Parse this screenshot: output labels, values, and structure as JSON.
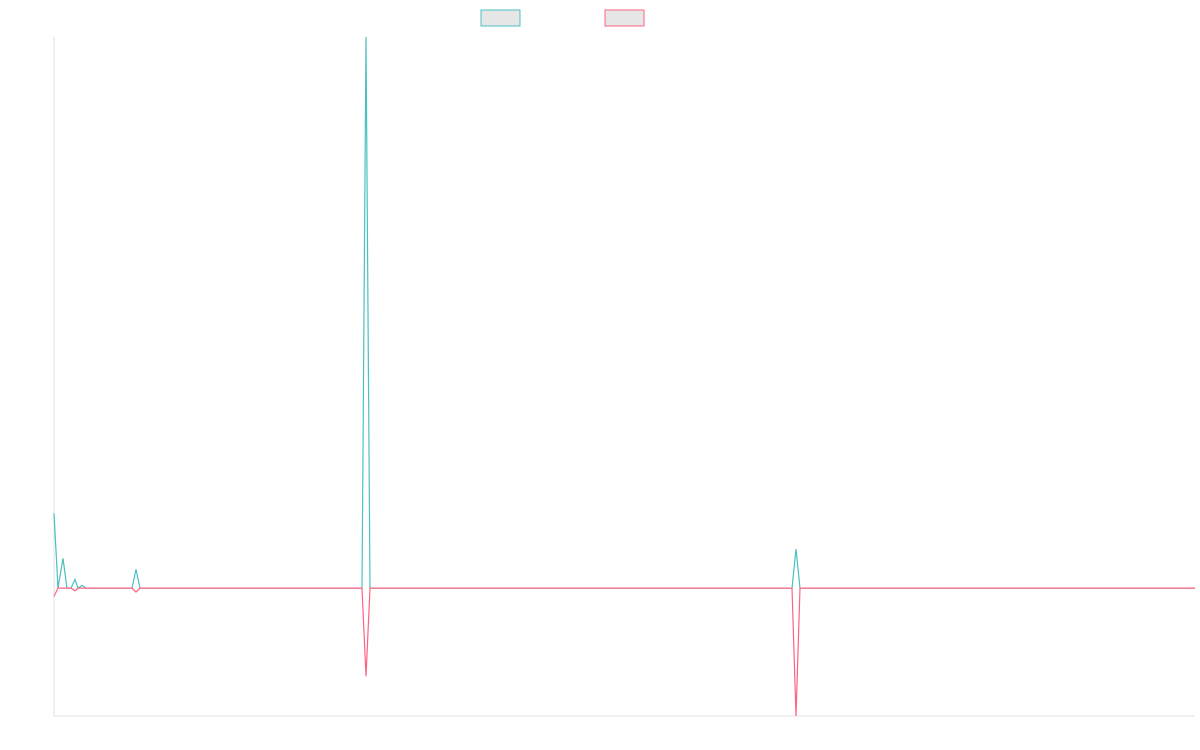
{
  "chart_data": {
    "type": "line",
    "x": [
      0,
      4,
      9,
      13,
      17,
      21,
      24,
      28,
      32,
      78,
      82,
      86,
      308,
      312,
      316,
      738,
      742,
      746,
      1141
    ],
    "xlim": [
      0,
      1141
    ],
    "ylim": [
      -23.2,
      100
    ],
    "series": [
      {
        "color": "#4bc0c0",
        "values": [
          13.6,
          0,
          5.4,
          0,
          0,
          1.6,
          0,
          0.5,
          0,
          0,
          3.4,
          0,
          0,
          100,
          0,
          0,
          7.1,
          0,
          0
        ]
      },
      {
        "color": "#ff6384",
        "values": [
          -1.5,
          0,
          0,
          0,
          0,
          -0.5,
          0,
          0,
          0,
          0,
          -0.7,
          0,
          0,
          -16,
          0,
          0,
          -23.2,
          0,
          0
        ]
      }
    ]
  }
}
